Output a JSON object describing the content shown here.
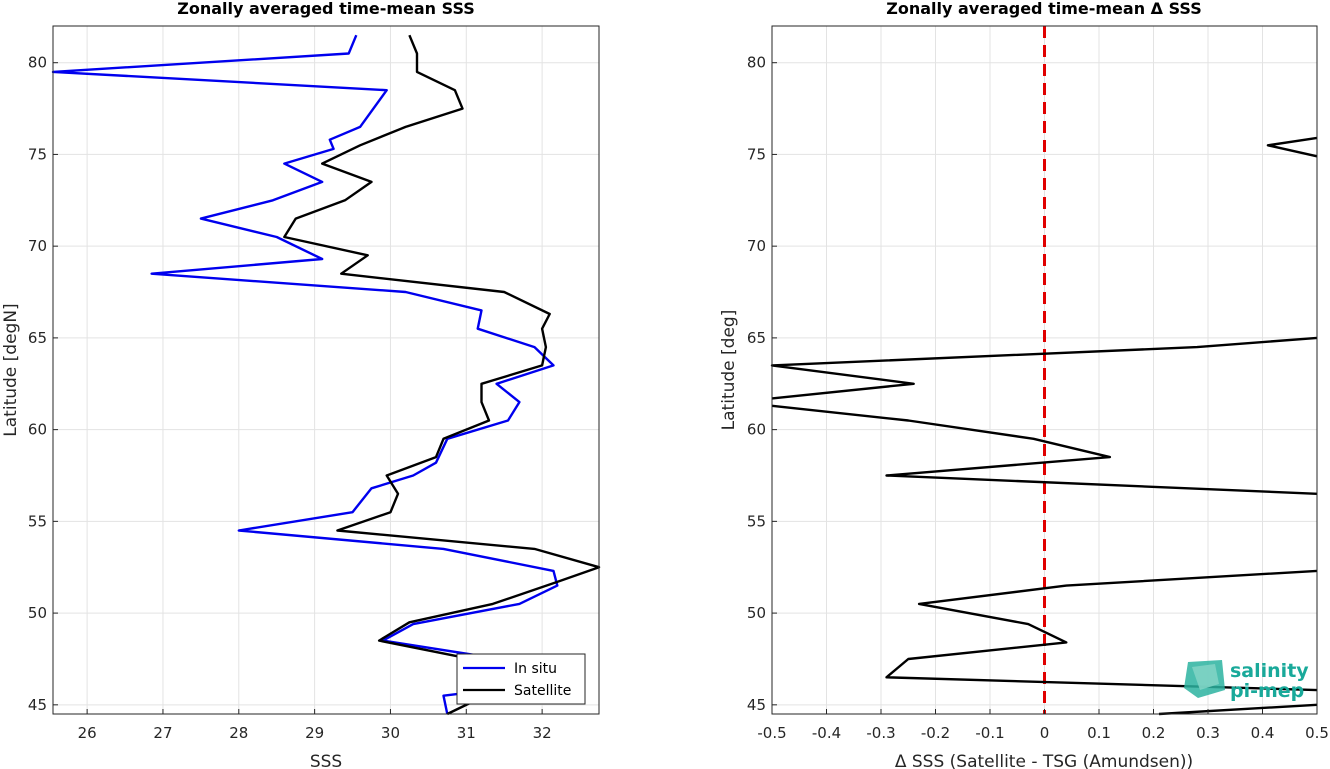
{
  "chart_data": [
    {
      "type": "line",
      "title": "Zonally averaged time-mean SSS",
      "xlabel": "SSS",
      "ylabel": "Latitude [degN]",
      "xlim": [
        25.55,
        32.75
      ],
      "ylim": [
        44.5,
        82
      ],
      "xticks": [
        26,
        27,
        28,
        29,
        30,
        31,
        32
      ],
      "yticks": [
        45,
        50,
        55,
        60,
        65,
        70,
        75,
        80
      ],
      "grid": true,
      "legend": "bottom-right",
      "series": [
        {
          "name": "In situ",
          "color": "#0000ee",
          "points": [
            [
              30.75,
              44.5
            ],
            [
              30.7,
              45.5
            ],
            [
              31.5,
              45.9
            ],
            [
              31.3,
              46.3
            ],
            [
              30.9,
              46.7
            ],
            [
              31.6,
              47.4
            ],
            [
              29.9,
              48.5
            ],
            [
              30.3,
              49.4
            ],
            [
              31.7,
              50.5
            ],
            [
              32.2,
              51.5
            ],
            [
              32.15,
              52.3
            ],
            [
              30.7,
              53.5
            ],
            [
              28,
              54.5
            ],
            [
              29.5,
              55.5
            ],
            [
              29.75,
              56.8
            ],
            [
              30.3,
              57.5
            ],
            [
              30.6,
              58.2
            ],
            [
              30.75,
              59.5
            ],
            [
              31.55,
              60.5
            ],
            [
              31.7,
              61.5
            ],
            [
              31.4,
              62.5
            ],
            [
              32.15,
              63.5
            ],
            [
              31.9,
              64.5
            ],
            [
              31.15,
              65.5
            ],
            [
              31.2,
              66.5
            ],
            [
              30.2,
              67.5
            ],
            [
              26.85,
              68.5
            ],
            [
              29.1,
              69.3
            ],
            [
              28.5,
              70.5
            ],
            [
              27.5,
              71.5
            ],
            [
              28.45,
              72.5
            ],
            [
              29.1,
              73.5
            ],
            [
              28.6,
              74.5
            ],
            [
              29.25,
              75.3
            ],
            [
              29.2,
              75.8
            ],
            [
              29.6,
              76.5
            ],
            [
              29.95,
              78.5
            ],
            [
              25.55,
              79.5
            ],
            [
              29.45,
              80.5
            ],
            [
              29.55,
              81.5
            ]
          ]
        },
        {
          "name": "Satellite",
          "color": "#000000",
          "points": [
            [
              30.75,
              44.5
            ],
            [
              31.35,
              45.7
            ],
            [
              31.3,
              46.4
            ],
            [
              31.3,
              47.3
            ],
            [
              29.85,
              48.5
            ],
            [
              30.25,
              49.5
            ],
            [
              31.35,
              50.5
            ],
            [
              32.2,
              51.7
            ],
            [
              32.75,
              52.5
            ],
            [
              31.9,
              53.5
            ],
            [
              29.3,
              54.5
            ],
            [
              30,
              55.5
            ],
            [
              30.1,
              56.5
            ],
            [
              29.95,
              57.5
            ],
            [
              30.6,
              58.5
            ],
            [
              30.7,
              59.5
            ],
            [
              31.3,
              60.5
            ],
            [
              31.2,
              61.5
            ],
            [
              31.2,
              62.5
            ],
            [
              32,
              63.5
            ],
            [
              32.05,
              64.5
            ],
            [
              32,
              65.5
            ],
            [
              32.1,
              66.3
            ],
            [
              31.5,
              67.5
            ],
            [
              29.35,
              68.5
            ],
            [
              29.7,
              69.5
            ],
            [
              28.6,
              70.5
            ],
            [
              28.75,
              71.5
            ],
            [
              29.4,
              72.5
            ],
            [
              29.75,
              73.5
            ],
            [
              29.1,
              74.5
            ],
            [
              29.6,
              75.5
            ],
            [
              30.2,
              76.5
            ],
            [
              30.95,
              77.5
            ],
            [
              30.85,
              78.5
            ],
            [
              30.35,
              79.5
            ],
            [
              30.35,
              80.5
            ],
            [
              30.25,
              81.5
            ]
          ]
        }
      ]
    },
    {
      "type": "line",
      "title": "Zonally averaged time-mean Δ SSS",
      "xlabel": "Δ SSS (Satellite - TSG (Amundsen))",
      "ylabel": "Latitude [deg]",
      "xlim": [
        -0.5,
        0.5
      ],
      "ylim": [
        44.5,
        82
      ],
      "xticks": [
        -0.5,
        -0.4,
        -0.3,
        -0.2,
        -0.1,
        0,
        0.1,
        0.2,
        0.3,
        0.4,
        0.5
      ],
      "xtick_labels": [
        "-0.5",
        "-0.4",
        "-0.3",
        "-0.2",
        "-0.1",
        "0",
        "0.1",
        "0.2",
        "0.3",
        "0.4",
        "0.5"
      ],
      "yticks": [
        45,
        50,
        55,
        60,
        65,
        70,
        75,
        80
      ],
      "grid": true,
      "zero_line": {
        "x": 0,
        "color": "#e00000",
        "style": "dashed"
      },
      "segments": [
        {
          "color": "#000000",
          "points": [
            [
              0.21,
              44.5
            ],
            [
              0.5,
              45
            ]
          ]
        },
        {
          "color": "#000000",
          "points": [
            [
              0.5,
              45.8
            ],
            [
              -0.29,
              46.5
            ],
            [
              -0.25,
              47.5
            ],
            [
              0.04,
              48.4
            ],
            [
              -0.03,
              49.4
            ],
            [
              -0.23,
              50.5
            ],
            [
              0.04,
              51.5
            ],
            [
              0.5,
              52.3
            ]
          ]
        },
        {
          "color": "#000000",
          "points": [
            [
              0.5,
              56.5
            ],
            [
              -0.29,
              57.5
            ],
            [
              0.12,
              58.5
            ],
            [
              -0.02,
              59.5
            ],
            [
              -0.25,
              60.5
            ],
            [
              -0.5,
              61.3
            ]
          ]
        },
        {
          "color": "#000000",
          "points": [
            [
              -0.5,
              61.7
            ],
            [
              -0.24,
              62.5
            ],
            [
              -0.5,
              63.5
            ],
            [
              0.28,
              64.5
            ],
            [
              0.5,
              65
            ]
          ]
        },
        {
          "color": "#000000",
          "points": [
            [
              0.5,
              74.9
            ],
            [
              0.41,
              75.5
            ],
            [
              0.5,
              75.9
            ]
          ]
        }
      ]
    }
  ],
  "logo": {
    "line1": "salinity",
    "line2": "pi-mep",
    "color": "#19a99a"
  }
}
